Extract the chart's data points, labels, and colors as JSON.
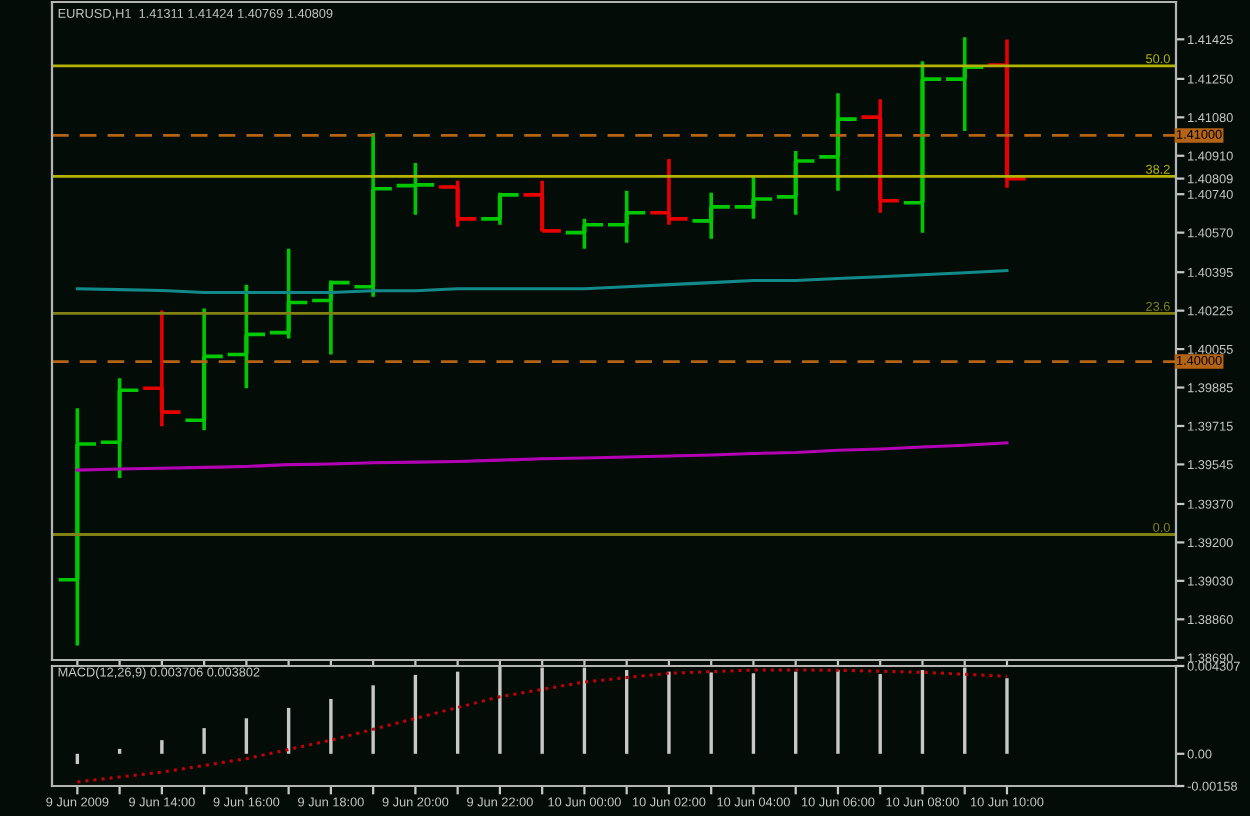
{
  "chart_data": [
    {
      "type": "candlestick",
      "title": "EURUSD,H1  1.41311 1.41424 1.40769 1.40809",
      "categories": [
        null,
        null,
        null,
        null,
        null,
        null,
        null,
        null,
        null,
        null,
        null,
        null,
        null,
        null,
        null,
        null,
        null,
        null,
        null,
        null,
        null,
        null,
        null
      ],
      "ohlc": [
        [
          1.39035,
          1.39793,
          1.38744,
          1.39635
        ],
        [
          1.39643,
          1.39926,
          1.39485,
          1.39873
        ],
        [
          1.39882,
          1.40226,
          1.39714,
          1.39776
        ],
        [
          1.3974,
          1.40234,
          1.39696,
          1.40023
        ],
        [
          1.40031,
          1.4034,
          1.39882,
          1.4012
        ],
        [
          1.40128,
          1.40499,
          1.40102,
          1.40261
        ],
        [
          1.4027,
          1.40358,
          1.40031,
          1.40349
        ],
        [
          1.40331,
          1.41011,
          1.40287,
          1.40764
        ],
        [
          1.40778,
          1.40878,
          1.40649,
          1.40781
        ],
        [
          1.40772,
          1.40799,
          1.40596,
          1.40631
        ],
        [
          1.40631,
          1.40746,
          1.40605,
          1.40737
        ],
        [
          1.40737,
          1.40799,
          1.40575,
          1.40578
        ],
        [
          1.4057,
          1.40631,
          1.40499,
          1.40605
        ],
        [
          1.40605,
          1.40755,
          1.40525,
          1.40658
        ],
        [
          1.40658,
          1.40896,
          1.40605,
          1.40631
        ],
        [
          1.40622,
          1.40746,
          1.40543,
          1.40684
        ],
        [
          1.40684,
          1.40825,
          1.40631,
          1.40719
        ],
        [
          1.40728,
          1.40931,
          1.40649,
          1.40887
        ],
        [
          1.40905,
          1.41187,
          1.40755,
          1.41072
        ],
        [
          1.41081,
          1.4116,
          1.40658,
          1.40711
        ],
        [
          1.40702,
          1.41328,
          1.4057,
          1.41249
        ],
        [
          1.41249,
          1.41434,
          1.41019,
          1.41302
        ],
        [
          1.41311,
          1.41424,
          1.40769,
          1.40809
        ]
      ],
      "colors": [
        "#00c800",
        "#00c800",
        "#e60000",
        "#00c800",
        "#00c800",
        "#00c800",
        "#00c800",
        "#00c800",
        "#00c800",
        "#e60000",
        "#00c800",
        "#e60000",
        "#00c800",
        "#00c800",
        "#e60000",
        "#00c800",
        "#00c800",
        "#00c800",
        "#00c800",
        "#e60000",
        "#00c800",
        "#00c800",
        "#e60000"
      ],
      "series": [
        {
          "type": "line",
          "color": "#138a8a",
          "values": [
            1.40322,
            1.40318,
            1.40314,
            1.40305,
            1.40305,
            1.40305,
            1.40305,
            1.40313,
            1.40313,
            1.40322,
            1.40322,
            1.40322,
            1.40322,
            1.40331,
            1.4034,
            1.40349,
            1.40358,
            1.40358,
            1.40367,
            1.40375,
            1.40384,
            1.40393,
            1.40402
          ]
        },
        {
          "type": "line",
          "color": "#b400b4",
          "values": [
            1.3952,
            1.39525,
            1.39528,
            1.39532,
            1.39536,
            1.39544,
            1.39547,
            1.39552,
            1.39555,
            1.39558,
            1.39564,
            1.3957,
            1.39573,
            1.39578,
            1.39582,
            1.39587,
            1.39593,
            1.39598,
            1.39608,
            1.39613,
            1.39622,
            1.3963,
            1.3964
          ]
        }
      ],
      "ref_lines": [
        {
          "axis": "y",
          "value": 1.41308,
          "color": "#b4b400",
          "line_style": "solid"
        },
        {
          "axis": "y",
          "value": 1.40819,
          "color": "#b4b400",
          "line_style": "solid"
        },
        {
          "axis": "y",
          "value": 1.40213,
          "color": "#828214",
          "line_style": "solid"
        },
        {
          "axis": "y",
          "value": 1.39235,
          "color": "#828214",
          "line_style": "solid"
        },
        {
          "axis": "y",
          "value": 1.41,
          "label": "1.41000",
          "color": "#b46414",
          "line_style": "dashed"
        },
        {
          "axis": "y",
          "value": 1.4,
          "label": "1.40000",
          "color": "#b46414",
          "line_style": "dashed"
        }
      ],
      "annotations": [
        {
          "text": "50.0",
          "y": 1.41308
        },
        {
          "text": "38.2",
          "y": 1.40819
        },
        {
          "text": "23.6",
          "y": 1.40213
        },
        {
          "text": "0.0",
          "y": 1.39235
        }
      ],
      "ylim": [
        1.3868,
        1.4159
      ],
      "yticks": [
        1.41425,
        {
          "value": 1.4125,
          "label": "1.41250"
        },
        {
          "value": 1.4108,
          "label": "1.41080"
        },
        {
          "value": 1.4091,
          "label": "1.40910"
        },
        1.40809,
        {
          "value": 1.4074,
          "label": "1.40740"
        },
        {
          "value": 1.4057,
          "label": "1.40570"
        },
        1.40395,
        1.40225,
        1.40055,
        1.39885,
        1.39715,
        1.39545,
        {
          "value": 1.3937,
          "label": "1.39370"
        },
        {
          "value": 1.392,
          "label": "1.39200"
        },
        {
          "value": 1.3903,
          "label": "1.39030"
        },
        {
          "value": 1.3886,
          "label": "1.38860"
        },
        {
          "value": 1.3869,
          "label": "1.38690"
        }
      ],
      "tick_labels": "y",
      "grid": false
    },
    {
      "type": "bar",
      "title": "MACD(12,26,9) 0.003706 0.003802",
      "categories": [
        "9 Jun 2009",
        null,
        "9 Jun 14:00",
        null,
        "9 Jun 16:00",
        null,
        "9 Jun 18:00",
        null,
        "9 Jun 20:00",
        null,
        "9 Jun 22:00",
        null,
        "10 Jun 00:00",
        null,
        "10 Jun 02:00",
        null,
        "10 Jun 04:00",
        null,
        "10 Jun 06:00",
        null,
        "10 Jun 08:00",
        null,
        "10 Jun 10:00"
      ],
      "series": [
        {
          "type": "bar",
          "color": "#c8c8c8",
          "values": [
            -0.0005,
            0.00024,
            0.00067,
            0.00126,
            0.00174,
            0.00225,
            0.00269,
            0.00336,
            0.00387,
            0.00403,
            0.00427,
            0.00423,
            0.00423,
            0.00411,
            0.00403,
            0.00399,
            0.00395,
            0.00403,
            0.00411,
            0.00391,
            0.00411,
            0.00423,
            0.003706
          ]
        },
        {
          "type": "line",
          "color": "#c80000",
          "line_style": "dotted",
          "values": [
            -0.00138,
            -0.00114,
            -0.0009,
            -0.00057,
            -0.00024,
            0.00021,
            0.00067,
            0.0012,
            0.00174,
            0.00227,
            0.0028,
            0.00316,
            0.00352,
            0.00374,
            0.00395,
            0.00403,
            0.00411,
            0.00411,
            0.0041,
            0.00405,
            0.004,
            0.0039,
            0.003802
          ]
        }
      ],
      "ylim": [
        -0.00158,
        0.004307
      ],
      "yticks": [
        0.004307,
        {
          "value": 0,
          "label": "0.00"
        },
        -0.00158
      ],
      "grid": false
    }
  ]
}
